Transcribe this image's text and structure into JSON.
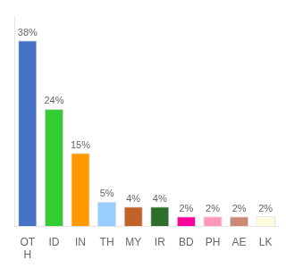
{
  "chart_data": {
    "type": "bar",
    "categories": [
      "OT\nH",
      "ID",
      "IN",
      "TH",
      "MY",
      "IR",
      "BD",
      "PH",
      "AE",
      "LK"
    ],
    "values": [
      38,
      24,
      15,
      5,
      4,
      4,
      2,
      2,
      2,
      2
    ],
    "value_labels": [
      "38%",
      "24%",
      "15%",
      "5%",
      "4%",
      "4%",
      "2%",
      "2%",
      "2%",
      "2%"
    ],
    "colors": [
      "#4472c4",
      "#33cc33",
      "#ff9900",
      "#99ccff",
      "#c0622a",
      "#2d6e2d",
      "#ff0099",
      "#ff99bb",
      "#cc8877",
      "#ffffdd"
    ],
    "ylim": [
      0,
      43
    ],
    "grid": false,
    "data_labels": true,
    "tick_labels": "x"
  }
}
